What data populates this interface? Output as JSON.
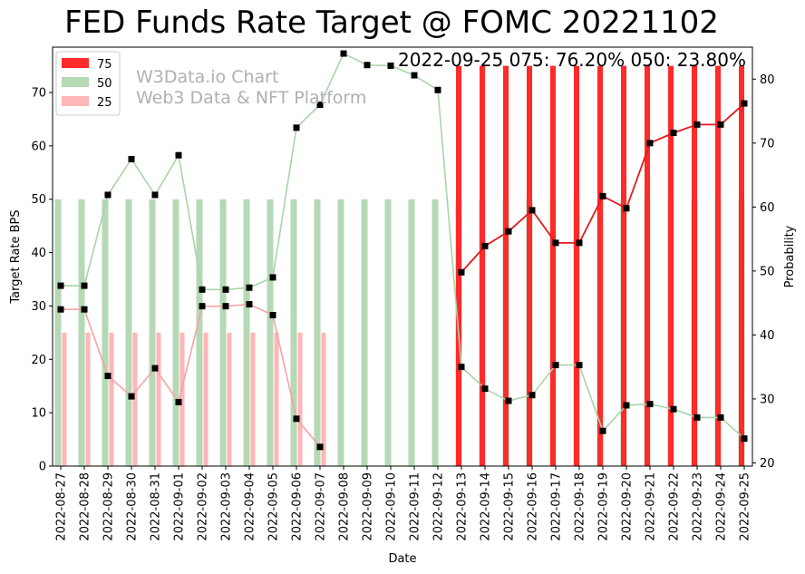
{
  "chart_data": {
    "type": "bar",
    "title": "FED Funds Rate Target @ FOMC 20221102",
    "annotation": "2022-09-25 075: 76.20% 050: 23.80%",
    "watermark": [
      "W3Data.io Chart",
      "Web3 Data & NFT Platform"
    ],
    "xlabel": "Date",
    "ylabel": "Target Rate BPS",
    "y2label": "Probability",
    "ylim": [
      0,
      78.5
    ],
    "y2lim": [
      19.5,
      85
    ],
    "yticks": [
      0,
      10,
      20,
      30,
      40,
      50,
      60,
      70
    ],
    "y2ticks": [
      20,
      30,
      40,
      50,
      60,
      70,
      80
    ],
    "grid": false,
    "legend_position": "top-left",
    "categories": [
      "2022-08-27",
      "2022-08-28",
      "2022-08-29",
      "2022-08-30",
      "2022-08-31",
      "2022-09-01",
      "2022-09-02",
      "2022-09-03",
      "2022-09-04",
      "2022-09-05",
      "2022-09-06",
      "2022-09-07",
      "2022-09-08",
      "2022-09-09",
      "2022-09-10",
      "2022-09-11",
      "2022-09-12",
      "2022-09-13",
      "2022-09-14",
      "2022-09-15",
      "2022-09-16",
      "2022-09-17",
      "2022-09-18",
      "2022-09-19",
      "2022-09-20",
      "2022-09-21",
      "2022-09-22",
      "2022-09-23",
      "2022-09-24",
      "2022-09-25"
    ],
    "series": [
      {
        "name": "75",
        "color": "#ff0000",
        "bar_value": 75,
        "probability": [
          null,
          null,
          null,
          null,
          null,
          null,
          null,
          null,
          null,
          null,
          null,
          null,
          null,
          null,
          null,
          null,
          null,
          49.8,
          53.9,
          56.2,
          59.5,
          54.4,
          54.4,
          61.7,
          59.8,
          70.0,
          71.6,
          72.9,
          72.9,
          76.2
        ]
      },
      {
        "name": "50",
        "color": "#8fcc8f",
        "bar_value": 50,
        "probability": [
          47.7,
          47.7,
          61.9,
          67.5,
          61.9,
          68.1,
          47.1,
          47.1,
          47.4,
          49.0,
          72.4,
          76.0,
          84.0,
          82.2,
          82.1,
          80.6,
          78.3,
          35.0,
          31.6,
          29.7,
          30.6,
          35.3,
          35.3,
          25.0,
          29.0,
          29.2,
          28.4,
          27.1,
          27.1,
          23.8
        ]
      },
      {
        "name": "25",
        "color": "#ff9999",
        "bar_value": 25,
        "probability": [
          44.0,
          44.0,
          33.6,
          30.4,
          34.8,
          29.5,
          44.5,
          44.5,
          44.8,
          43.1,
          26.9,
          22.5,
          null,
          null,
          null,
          null,
          null,
          null,
          null,
          null,
          null,
          null,
          null,
          null,
          null,
          null,
          null,
          null,
          null,
          null
        ]
      }
    ]
  }
}
